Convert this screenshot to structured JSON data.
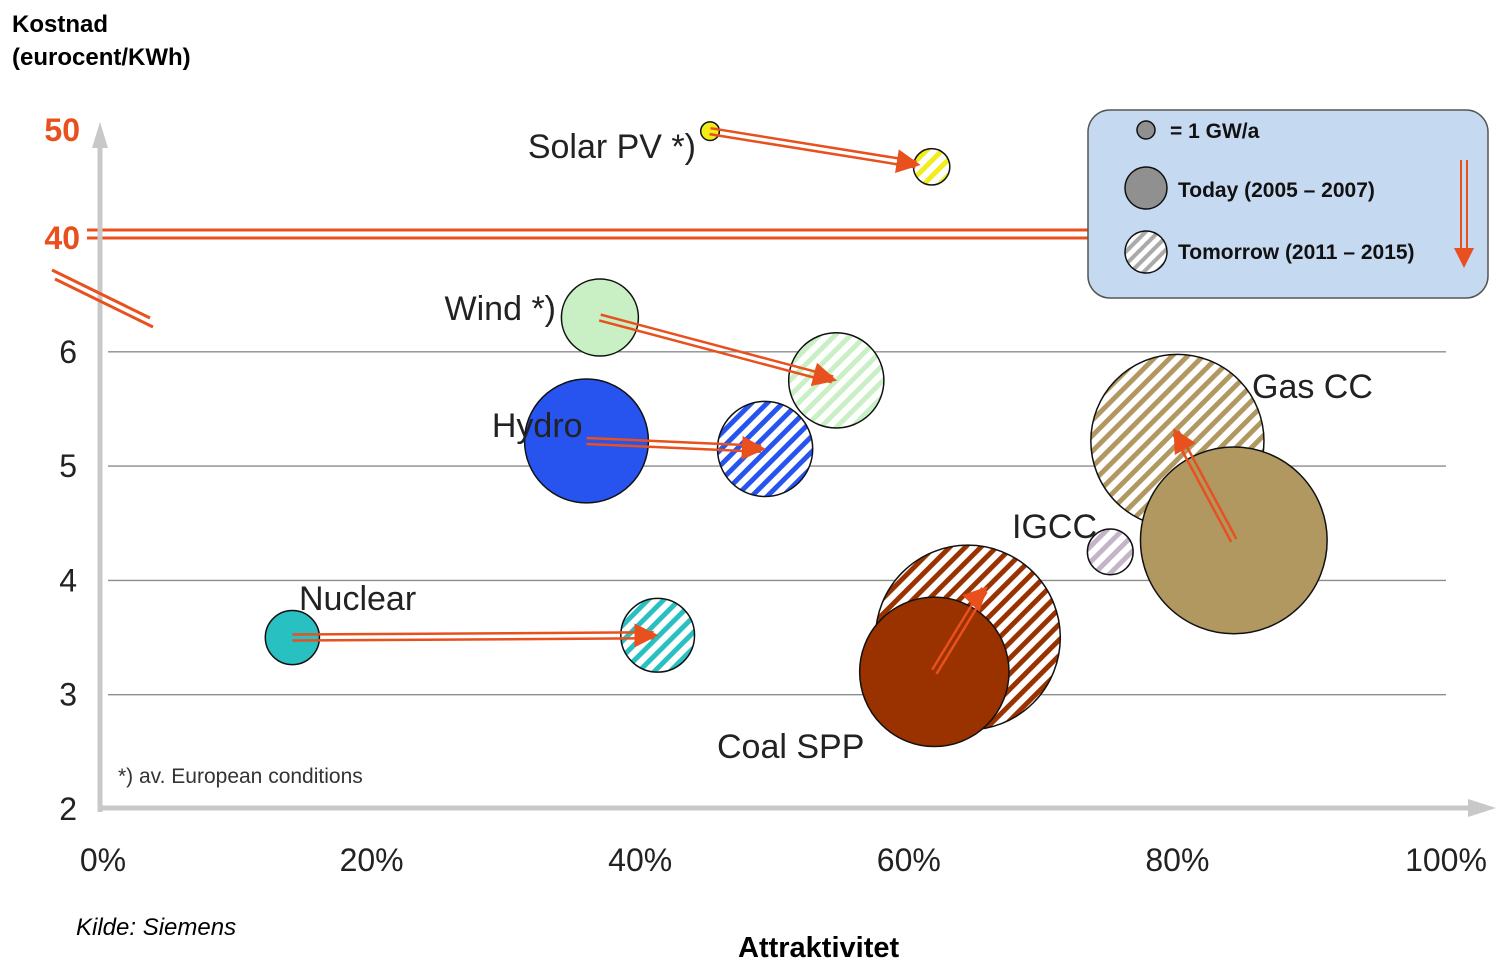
{
  "chart_data": {
    "type": "scatter",
    "subtype": "bubble",
    "title": "",
    "ylabel": "Kostnad (eurocent/KWh)",
    "ylabel_lines": [
      "Kostnad",
      "(eurocent/KWh)"
    ],
    "xlabel": "Attraktivitet",
    "source": "Kilde: Siemens",
    "note": "*) av. European conditions",
    "x_ticks": [
      "0%",
      "20%",
      "40%",
      "60%",
      "80%",
      "100%"
    ],
    "x_tick_values": [
      0,
      20,
      40,
      60,
      80,
      100
    ],
    "xlim": [
      0,
      100
    ],
    "y_ticks": [
      "2",
      "3",
      "4",
      "5",
      "6"
    ],
    "y_tick_values": [
      2,
      3,
      4,
      5,
      6
    ],
    "y_break_ticks": [
      "40",
      "50"
    ],
    "y_break_tick_values": [
      40,
      50
    ],
    "axis_break": true,
    "grid": "horizontal",
    "colors": {
      "accent": "#e8501e",
      "grid": "#8c8c8c",
      "axis": "#c8c8c8",
      "legend_bg": "#c5d9f1",
      "Solar PV": "#f2ec1a",
      "Wind": "#c8f0c4",
      "Hydro": "#2753ee",
      "Nuclear": "#29c0c2",
      "Coal SPP": "#9a3200",
      "IGCC": "#c4b4c8",
      "Gas CC": "#b09860"
    },
    "legend": {
      "position": "top-right",
      "entries": [
        {
          "label": "= 1 GW/a",
          "kind": "scale"
        },
        {
          "label": "Today (2005 – 2007)",
          "kind": "solid"
        },
        {
          "label": "Tomorrow (2011 – 2015)",
          "kind": "hatched"
        }
      ]
    },
    "series": [
      {
        "label": "Solar PV *)",
        "color": "#f2ec1a",
        "today": {
          "x": 45.2,
          "y": 49.8,
          "size": 0.5
        },
        "tomorrow": {
          "x": 61.7,
          "y": 46.5,
          "size": 1.9
        }
      },
      {
        "label": "Wind *)",
        "color": "#c8f0c4",
        "today": {
          "x": 37,
          "y": 6.3,
          "size": 8.5
        },
        "tomorrow": {
          "x": 54.6,
          "y": 5.75,
          "size": 13
        }
      },
      {
        "label": "Hydro",
        "color": "#2753ee",
        "today": {
          "x": 36,
          "y": 5.22,
          "size": 22
        },
        "tomorrow": {
          "x": 49.3,
          "y": 5.15,
          "size": 13
        }
      },
      {
        "label": "Nuclear",
        "color": "#29c0c2",
        "today": {
          "x": 14.1,
          "y": 3.5,
          "size": 4.2
        },
        "tomorrow": {
          "x": 41.3,
          "y": 3.52,
          "size": 7.8
        }
      },
      {
        "label": "Coal SPP",
        "color": "#9a3200",
        "today": {
          "x": 61.9,
          "y": 3.2,
          "size": 32
        },
        "tomorrow": {
          "x": 64.4,
          "y": 3.5,
          "size": 49
        }
      },
      {
        "label": "IGCC",
        "color": "#c4b4c8",
        "today": null,
        "tomorrow": {
          "x": 75,
          "y": 4.25,
          "size": 3
        }
      },
      {
        "label": "Gas CC",
        "color": "#b09860",
        "today": {
          "x": 84.2,
          "y": 4.35,
          "size": 50
        },
        "tomorrow": {
          "x": 80,
          "y": 5.22,
          "size": 43
        }
      }
    ]
  }
}
